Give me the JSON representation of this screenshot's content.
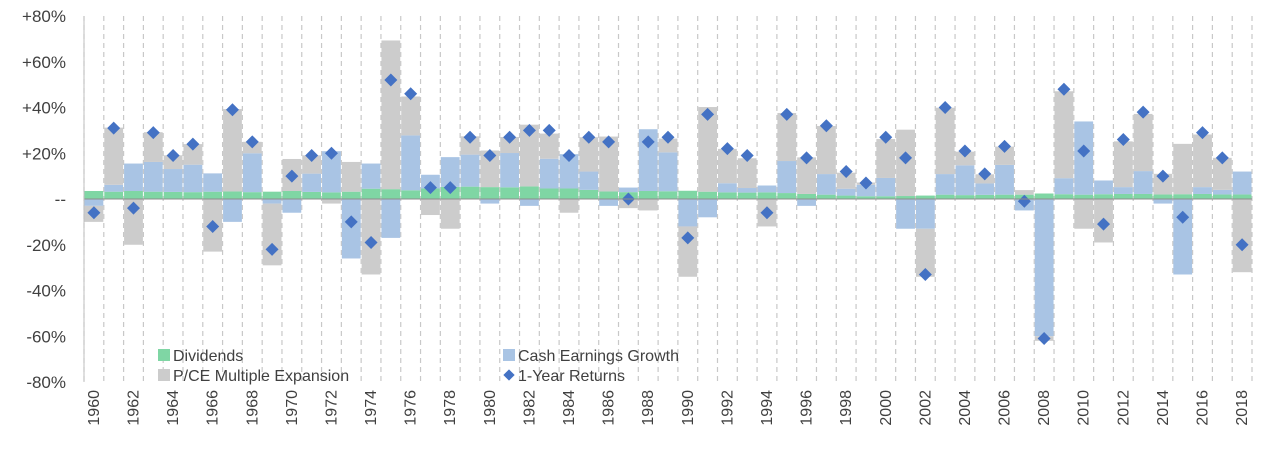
{
  "chart_data": {
    "type": "bar",
    "stacked": true,
    "ylim": [
      -80,
      80
    ],
    "yticks": [
      -80,
      -60,
      -40,
      -20,
      0,
      20,
      40,
      60,
      80
    ],
    "ytick_labels": [
      "-80%",
      "-60%",
      "-40%",
      "-20%",
      "--",
      "+20%",
      "+40%",
      "+60%",
      "+80%"
    ],
    "grid": "vertical dashed",
    "legend_position": "bottom",
    "x": [
      1960,
      1961,
      1962,
      1963,
      1964,
      1965,
      1966,
      1967,
      1968,
      1969,
      1970,
      1971,
      1972,
      1973,
      1974,
      1975,
      1976,
      1977,
      1978,
      1979,
      1980,
      1981,
      1982,
      1983,
      1984,
      1985,
      1986,
      1987,
      1988,
      1989,
      1990,
      1991,
      1992,
      1993,
      1994,
      1995,
      1996,
      1997,
      1998,
      1999,
      2000,
      2001,
      2002,
      2003,
      2004,
      2005,
      2006,
      2007,
      2008,
      2009,
      2010,
      2011,
      2012,
      2013,
      2014,
      2015,
      2016,
      2017,
      2018
    ],
    "xtick_labels": [
      "1960",
      "1962",
      "1964",
      "1966",
      "1968",
      "1970",
      "1972",
      "1974",
      "1976",
      "1978",
      "1980",
      "1982",
      "1984",
      "1986",
      "1988",
      "1990",
      "1992",
      "1994",
      "1996",
      "1998",
      "2000",
      "2002",
      "2004",
      "2006",
      "2008",
      "2010",
      "2012",
      "2014",
      "2016",
      "2018"
    ],
    "series": [
      {
        "name": "Dividends",
        "color": "#7fd6a4",
        "kind": "bar",
        "values": [
          3.5,
          3.2,
          3.5,
          3.2,
          3.1,
          3.0,
          3.2,
          3.3,
          3.0,
          3.2,
          3.5,
          3.1,
          2.9,
          3.2,
          4.5,
          4.3,
          3.8,
          4.6,
          5.3,
          5.4,
          5.2,
          5.1,
          5.5,
          4.6,
          4.6,
          4.0,
          3.3,
          3.0,
          3.5,
          3.4,
          3.6,
          3.2,
          2.9,
          2.8,
          2.9,
          2.6,
          2.2,
          1.9,
          1.5,
          1.2,
          1.2,
          1.3,
          1.5,
          1.9,
          1.7,
          1.8,
          1.9,
          1.9,
          2.4,
          2.1,
          1.9,
          2.1,
          2.2,
          2.2,
          2.0,
          2.1,
          2.2,
          2.0,
          2.0
        ]
      },
      {
        "name": "Cash Earnings Growth",
        "color": "#a9c4e4",
        "kind": "bar",
        "values": [
          -3,
          3,
          12,
          13,
          10,
          12,
          8,
          -10,
          17,
          -2,
          -6,
          8,
          18,
          -26,
          11,
          -17,
          24,
          6,
          13,
          14,
          -2,
          15,
          -3,
          13,
          15,
          8,
          -3,
          2,
          27,
          17,
          -12,
          -8,
          4,
          2,
          3,
          14,
          -3,
          9,
          3,
          5,
          8,
          -13,
          -13,
          9,
          13,
          5,
          13,
          -5,
          -60,
          7,
          32,
          6,
          3,
          10,
          -2,
          -33,
          3,
          2,
          10
        ]
      },
      {
        "name": "P/CE Multiple Expansion",
        "color": "#cccccc",
        "kind": "bar",
        "values": [
          -7,
          25,
          -20,
          13,
          6,
          9,
          -23,
          36,
          5,
          -27,
          14,
          8,
          -2,
          13,
          -33,
          65,
          17,
          -7,
          -13,
          8,
          16,
          7,
          27,
          11,
          -6,
          15,
          24,
          -4,
          -5,
          6,
          -22,
          37,
          15,
          13,
          -12,
          21,
          16,
          21,
          7,
          1,
          17,
          29,
          -21,
          29,
          6,
          4,
          8,
          2,
          -2,
          38,
          -13,
          -19,
          20,
          25,
          9,
          22,
          23,
          14,
          -32
        ]
      },
      {
        "name": "1-Year Returns",
        "color": "#4472c4",
        "kind": "marker",
        "values": [
          -6,
          31,
          -4,
          29,
          19,
          24,
          -12,
          39,
          25,
          -22,
          10,
          19,
          20,
          -10,
          -19,
          52,
          46,
          5,
          5,
          27,
          19,
          27,
          30,
          30,
          19,
          27,
          25,
          0,
          25,
          27,
          -17,
          37,
          22,
          19,
          -6,
          37,
          18,
          32,
          12,
          7,
          27,
          18,
          -33,
          40,
          21,
          11,
          23,
          -1,
          -61,
          48,
          21,
          -11,
          26,
          38,
          10,
          -8,
          29,
          18,
          -20
        ]
      }
    ]
  }
}
